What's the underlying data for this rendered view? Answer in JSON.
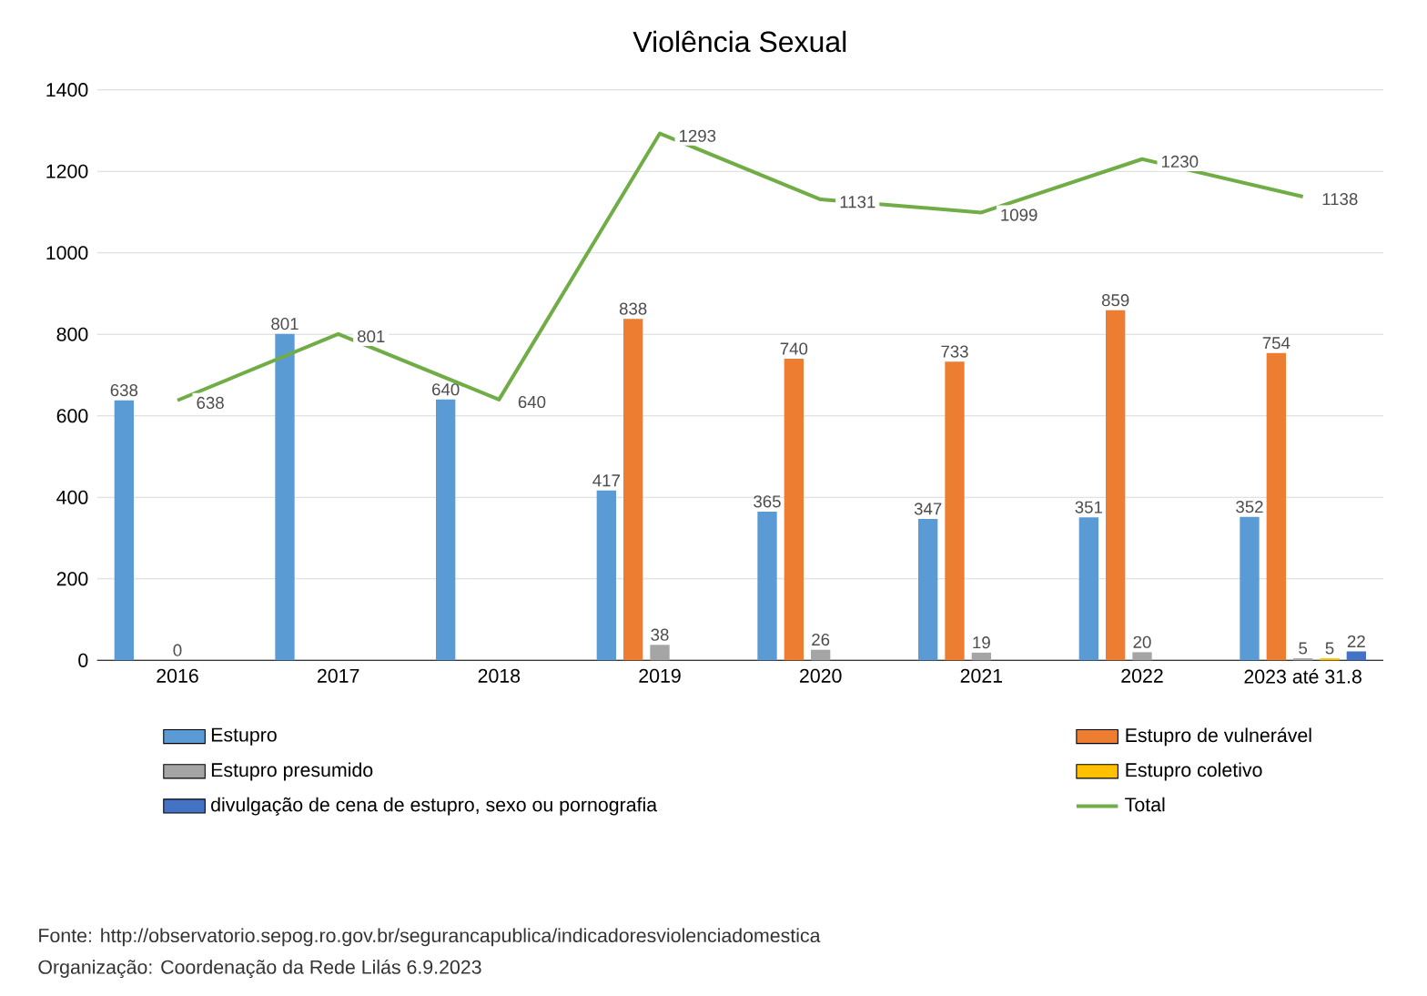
{
  "chart_data": {
    "type": "bar",
    "title": "Violência Sexual",
    "categories": [
      "2016",
      "2017",
      "2018",
      "2019",
      "2020",
      "2021",
      "2022",
      "2023 até 31.8"
    ],
    "series": [
      {
        "name": "Estupro",
        "color": "#5b9bd5",
        "values": [
          638,
          801,
          640,
          417,
          365,
          347,
          351,
          352
        ]
      },
      {
        "name": "Estupro de vulnerável",
        "color": "#ed7d31",
        "values": [
          null,
          null,
          null,
          838,
          740,
          733,
          859,
          754
        ]
      },
      {
        "name": "Estupro presumido",
        "color": "#a5a5a5",
        "values": [
          0,
          null,
          null,
          38,
          26,
          19,
          20,
          5
        ]
      },
      {
        "name": "Estupro coletivo",
        "color": "#ffc000",
        "values": [
          null,
          null,
          null,
          null,
          null,
          null,
          null,
          5
        ]
      },
      {
        "name": "divulgação de cena de estupro, sexo ou pornografia",
        "color": "#4472c4",
        "values": [
          null,
          null,
          null,
          null,
          null,
          null,
          null,
          22
        ]
      },
      {
        "name": "Total",
        "type": "line",
        "color": "#70ad47",
        "values": [
          638,
          801,
          640,
          1293,
          1131,
          1099,
          1230,
          1138
        ]
      }
    ],
    "ylim": [
      0,
      1400
    ],
    "yticks": [
      0,
      200,
      400,
      600,
      800,
      1000,
      1200,
      1400
    ],
    "grid": "y",
    "legend": "bottom",
    "data_labels": true,
    "marker": "none",
    "annotations": [
      "Fonte: http://observatorio.sepog.ro.gov.br/segurancapublica/indicadoresviolenciadomestica",
      "Organização: Coordenação da Rede Lilás 6.9.2023"
    ]
  }
}
